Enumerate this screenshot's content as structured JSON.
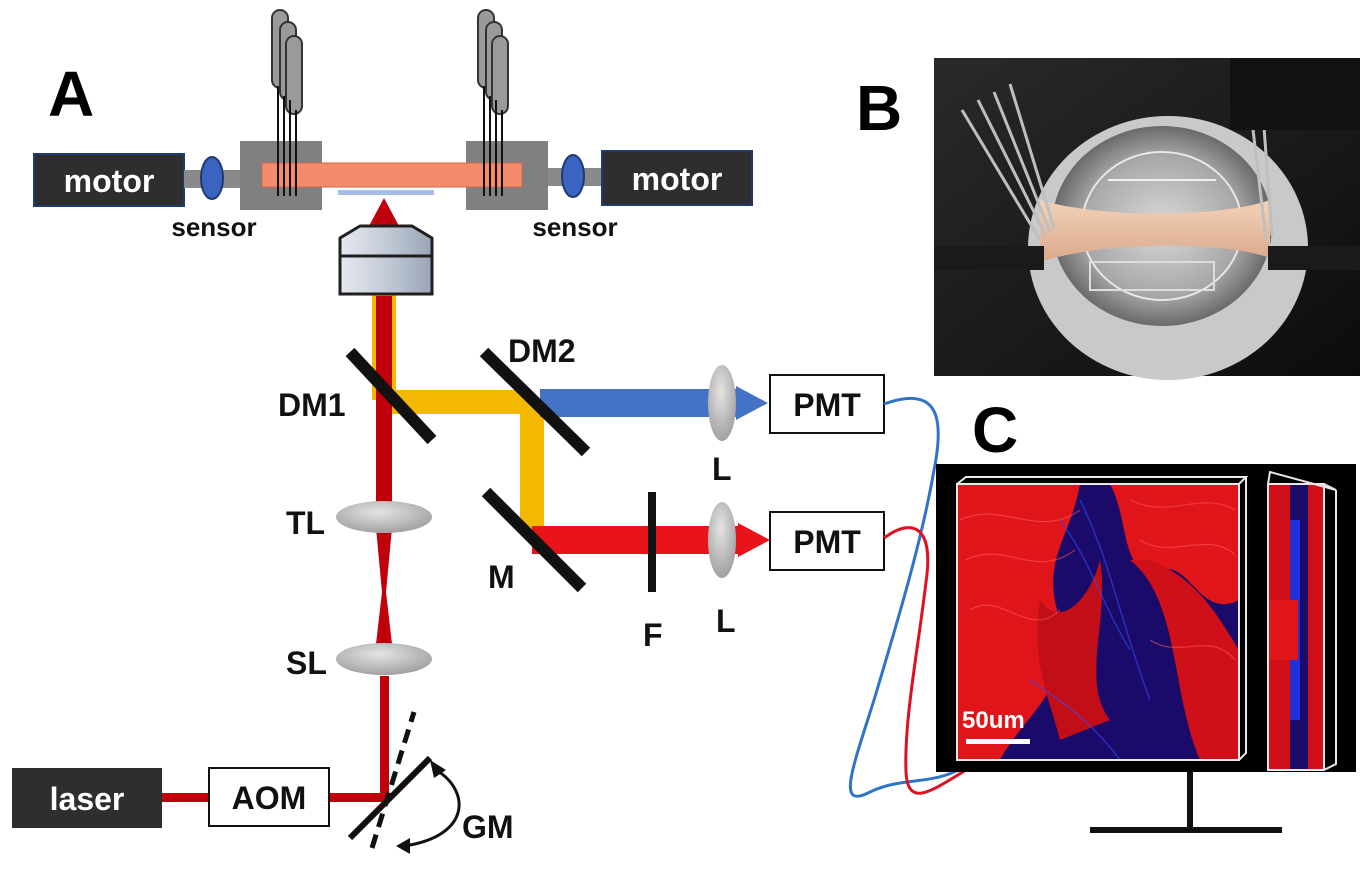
{
  "panels": {
    "a": "A",
    "b": "B",
    "c": "C"
  },
  "stage": {
    "motor_left": "motor",
    "motor_right": "motor",
    "sensor_left": "sensor",
    "sensor_right": "sensor"
  },
  "optics": {
    "dm1": "DM1",
    "dm2": "DM2",
    "tl": "TL",
    "sl": "SL",
    "m": "M",
    "f": "F",
    "l_top": "L",
    "l_bottom": "L",
    "gm": "GM"
  },
  "detectors": {
    "pmt_top": "PMT",
    "pmt_bottom": "PMT"
  },
  "source": {
    "laser": "laser",
    "aom": "AOM"
  },
  "monitor": {
    "scale_bar": "50um"
  },
  "colors": {
    "excitation": "#c0000a",
    "emission": "#f5b800",
    "blue_channel": "#4472c4",
    "red_channel": "#e8141a",
    "sample": "#f48b6b",
    "box_dark": "#2e2e2e",
    "sensor_blue": "#3b64c2"
  }
}
